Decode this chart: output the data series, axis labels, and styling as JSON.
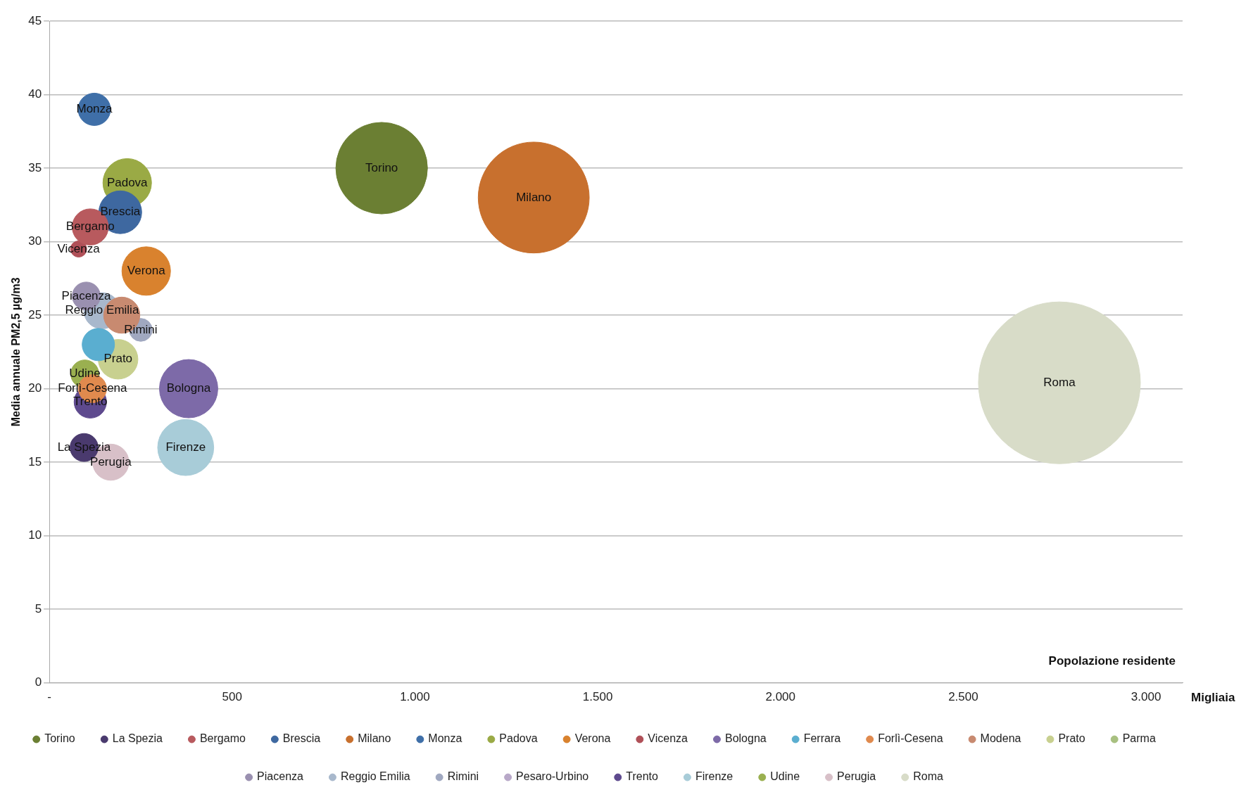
{
  "chart_data": {
    "type": "bubble",
    "xlabel": "Popolazione residente",
    "ylabel": "Media annuale PM2,5 µg/m3",
    "xlim": [
      0,
      3100
    ],
    "xticks": [
      {
        "value": 0,
        "label": "-"
      },
      {
        "value": 500,
        "label": "500"
      },
      {
        "value": 1000,
        "label": "1.000"
      },
      {
        "value": 1500,
        "label": "1.500"
      },
      {
        "value": 2000,
        "label": "2.000"
      },
      {
        "value": 2500,
        "label": "2.500"
      },
      {
        "value": 3000,
        "label": "3.000"
      }
    ],
    "ylim": [
      0,
      45
    ],
    "yticks": [
      0,
      5,
      10,
      15,
      20,
      25,
      30,
      35,
      40,
      45
    ],
    "grid": "y",
    "legend": "bottom",
    "marker": "circle",
    "series": [
      {
        "name": "Torino",
        "color": "#6b7f33",
        "x": [
          909
        ],
        "values": [
          35
        ],
        "sizes": [
          0.32
        ]
      },
      {
        "name": "La Spezia",
        "color": "#4a3a6e",
        "x": [
          95
        ],
        "values": [
          16
        ],
        "sizes": [
          0.03
        ]
      },
      {
        "name": "Bergamo",
        "color": "#b85a5e",
        "x": [
          112
        ],
        "values": [
          31
        ],
        "sizes": [
          0.05
        ]
      },
      {
        "name": "Brescia",
        "color": "#3e68a0",
        "x": [
          194
        ],
        "values": [
          32
        ],
        "sizes": [
          0.07
        ]
      },
      {
        "name": "Milano",
        "color": "#c8702e",
        "x": [
          1325
        ],
        "values": [
          33
        ],
        "sizes": [
          0.47
        ]
      },
      {
        "name": "Monza",
        "color": "#3f6fa8",
        "x": [
          123
        ],
        "values": [
          39
        ],
        "sizes": [
          0.04
        ]
      },
      {
        "name": "Padova",
        "color": "#9aaa45",
        "x": [
          213
        ],
        "values": [
          34
        ],
        "sizes": [
          0.09
        ]
      },
      {
        "name": "Verona",
        "color": "#d9822e",
        "x": [
          265
        ],
        "values": [
          28
        ],
        "sizes": [
          0.09
        ]
      },
      {
        "name": "Vicenza",
        "color": "#b05058",
        "x": [
          80
        ],
        "values": [
          29.5
        ],
        "sizes": [
          0.01
        ]
      },
      {
        "name": "Bologna",
        "color": "#7d6aa8",
        "x": [
          381
        ],
        "values": [
          20
        ],
        "sizes": [
          0.13
        ]
      },
      {
        "name": "Ferrara",
        "color": "#5aaed0",
        "x": [
          134
        ],
        "values": [
          23
        ],
        "sizes": [
          0.04
        ]
      },
      {
        "name": "Forlì-Cesena",
        "color": "#e08a4e",
        "x": [
          118
        ],
        "values": [
          20
        ],
        "sizes": [
          0.03
        ]
      },
      {
        "name": "Modena",
        "color": "#c88a70",
        "x": [
          198
        ],
        "values": [
          25
        ],
        "sizes": [
          0.05
        ]
      },
      {
        "name": "Prato",
        "color": "#c8d08f",
        "x": [
          188
        ],
        "values": [
          22
        ],
        "sizes": [
          0.06
        ]
      },
      {
        "name": "Parma",
        "color": "#a8c080",
        "x": [
          null
        ],
        "values": [
          null
        ],
        "sizes": [
          null
        ]
      },
      {
        "name": "Piacenza",
        "color": "#9a90b0",
        "x": [
          101
        ],
        "values": [
          26.3
        ],
        "sizes": [
          0.03
        ]
      },
      {
        "name": "Reggio Emilia",
        "color": "#a8b8cc",
        "x": [
          144
        ],
        "values": [
          25.3
        ],
        "sizes": [
          0.05
        ]
      },
      {
        "name": "Rimini",
        "color": "#a0a8c0",
        "x": [
          250
        ],
        "values": [
          24
        ],
        "sizes": [
          0.02
        ]
      },
      {
        "name": "Pesaro-Urbino",
        "color": "#b8a8c8",
        "x": [
          null
        ],
        "values": [
          null
        ],
        "sizes": [
          null
        ]
      },
      {
        "name": "Trento",
        "color": "#5e4a8e",
        "x": [
          112
        ],
        "values": [
          19.1
        ],
        "sizes": [
          0.04
        ]
      },
      {
        "name": "Firenze",
        "color": "#a8ccd8",
        "x": [
          373
        ],
        "values": [
          16
        ],
        "sizes": [
          0.12
        ]
      },
      {
        "name": "Udine",
        "color": "#9ab050",
        "x": [
          97
        ],
        "values": [
          21
        ],
        "sizes": [
          0.03
        ]
      },
      {
        "name": "Perugia",
        "color": "#d8c0c8",
        "x": [
          168
        ],
        "values": [
          15
        ],
        "sizes": [
          0.05
        ]
      },
      {
        "name": "Roma",
        "color": "#d8dcc8",
        "x": [
          2763
        ],
        "values": [
          20.4
        ],
        "sizes": [
          1
        ]
      }
    ],
    "annotations": [
      "Migliaia",
      {
        "text": "Torino",
        "x": 909,
        "y": 35
      },
      {
        "text": "Milano",
        "x": 1325,
        "y": 33
      },
      {
        "text": "Roma",
        "x": 2763,
        "y": 20.4
      },
      {
        "text": "Monza",
        "x": 123,
        "y": 39
      },
      {
        "text": "Padova",
        "x": 213,
        "y": 34
      },
      {
        "text": "Brescia",
        "x": 194,
        "y": 32
      },
      {
        "text": "Bergamo",
        "x": 112,
        "y": 31
      },
      {
        "text": "Vicenza",
        "x": 80,
        "y": 29.5
      },
      {
        "text": "Verona",
        "x": 265,
        "y": 28
      },
      {
        "text": "Piacenza",
        "x": 101,
        "y": 26.3
      },
      {
        "text": "Reggio Emilia",
        "x": 144,
        "y": 25.3
      },
      {
        "text": "Rimini",
        "x": 250,
        "y": 24
      },
      {
        "text": "Prato",
        "x": 188,
        "y": 22
      },
      {
        "text": "Udine",
        "x": 97,
        "y": 21
      },
      {
        "text": "Forlì-Cesena",
        "x": 118,
        "y": 20
      },
      {
        "text": "Trento",
        "x": 112,
        "y": 19.1
      },
      {
        "text": "Bologna",
        "x": 381,
        "y": 20
      },
      {
        "text": "Firenze",
        "x": 373,
        "y": 16
      },
      {
        "text": "La Spezia",
        "x": 95,
        "y": 16
      },
      {
        "text": "Perugia",
        "x": 168,
        "y": 15
      }
    ]
  }
}
